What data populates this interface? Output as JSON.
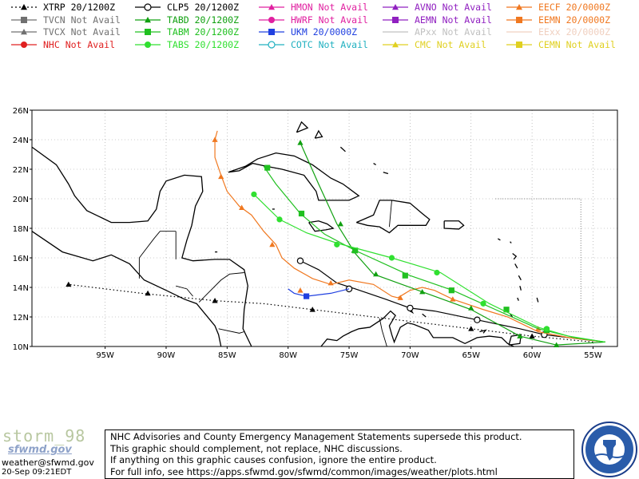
{
  "legend": [
    {
      "id": "xtrp",
      "label": "XTRP 20/1200Z",
      "color": "#000000",
      "marker": "triangle",
      "dash": "dotted"
    },
    {
      "id": "clp5",
      "label": "CLP5 20/1200Z",
      "color": "#000000",
      "marker": "circle-open",
      "dash": "solid"
    },
    {
      "id": "hmon",
      "label": "HMON Not Avail",
      "color": "#e020a0",
      "marker": "triangle",
      "dash": "solid"
    },
    {
      "id": "avno",
      "label": "AVNO Not Avail",
      "color": "#9020c0",
      "marker": "triangle",
      "dash": "solid"
    },
    {
      "id": "eecf",
      "label": "EECF 20/0000Z",
      "color": "#f07820",
      "marker": "triangle",
      "dash": "solid"
    },
    {
      "id": "tvcn",
      "label": "TVCN Not Avail",
      "color": "#707070",
      "marker": "square",
      "dash": "solid"
    },
    {
      "id": "tabd",
      "label": "TABD 20/1200Z",
      "color": "#10a010",
      "marker": "triangle",
      "dash": "solid"
    },
    {
      "id": "hwrf",
      "label": "HWRF Not Avail",
      "color": "#e020a0",
      "marker": "circle",
      "dash": "solid"
    },
    {
      "id": "aemn",
      "label": "AEMN Not Avail",
      "color": "#9020c0",
      "marker": "square",
      "dash": "solid"
    },
    {
      "id": "eemn",
      "label": "EEMN 20/0000Z",
      "color": "#f07820",
      "marker": "square",
      "dash": "solid"
    },
    {
      "id": "tvcx",
      "label": "TVCX Not Avail",
      "color": "#707070",
      "marker": "triangle",
      "dash": "solid"
    },
    {
      "id": "tabm",
      "label": "TABM 20/1200Z",
      "color": "#20c020",
      "marker": "square",
      "dash": "solid"
    },
    {
      "id": "ukm",
      "label": "UKM  20/0000Z",
      "color": "#2040e0",
      "marker": "square",
      "dash": "solid"
    },
    {
      "id": "apxx",
      "label": "APxx Not Avail",
      "color": "#c0c0c0",
      "marker": "none",
      "dash": "solid"
    },
    {
      "id": "eexx",
      "label": "EExx 20/0000Z",
      "color": "#f0d0c0",
      "marker": "none",
      "dash": "solid"
    },
    {
      "id": "nhc",
      "label": "NHC Not Avail",
      "color": "#e02020",
      "marker": "circle",
      "dash": "solid"
    },
    {
      "id": "tabs",
      "label": "TABS 20/1200Z",
      "color": "#30e030",
      "marker": "circle",
      "dash": "solid"
    },
    {
      "id": "cotc",
      "label": "COTC Not Avail",
      "color": "#20b0c0",
      "marker": "circle-open",
      "dash": "solid"
    },
    {
      "id": "cmc",
      "label": "CMC  Not Avail",
      "color": "#e0d020",
      "marker": "triangle",
      "dash": "solid"
    },
    {
      "id": "cemn",
      "label": "CEMN Not Avail",
      "color": "#e0d020",
      "marker": "square",
      "dash": "solid"
    }
  ],
  "chart_data": {
    "type": "line",
    "xlim": [
      -101,
      -53
    ],
    "ylim": [
      10,
      26
    ],
    "x_ticks": [
      "95W",
      "90W",
      "85W",
      "80W",
      "75W",
      "70W",
      "65W",
      "60W",
      "55W"
    ],
    "y_ticks": [
      "10N",
      "12N",
      "14N",
      "16N",
      "18N",
      "20N",
      "22N",
      "24N",
      "26N"
    ],
    "series": [
      {
        "name": "XTRP",
        "color": "#000000",
        "marker": "triangle",
        "dash": "dotted",
        "points": [
          [
            -55,
            10.3
          ],
          [
            -60,
            10.7
          ],
          [
            -65,
            11.2
          ],
          [
            -70,
            11.7
          ],
          [
            -75,
            12.2
          ],
          [
            -78,
            12.5
          ],
          [
            -82,
            12.9
          ],
          [
            -86,
            13.1
          ],
          [
            -92,
            13.6
          ],
          [
            -98,
            14.2
          ]
        ],
        "markers": [
          [
            -60,
            10.7
          ],
          [
            -65,
            11.2
          ],
          [
            -78,
            12.5
          ],
          [
            -86,
            13.1
          ],
          [
            -91.5,
            13.6
          ],
          [
            -98,
            14.2
          ]
        ]
      },
      {
        "name": "CLP5",
        "color": "#000000",
        "marker": "circle-open",
        "dash": "solid",
        "points": [
          [
            -54,
            10.3
          ],
          [
            -56,
            10.5
          ],
          [
            -59,
            10.8
          ],
          [
            -61,
            11.2
          ],
          [
            -64.5,
            11.8
          ],
          [
            -68,
            12.4
          ],
          [
            -70,
            12.6
          ],
          [
            -72,
            13.2
          ],
          [
            -74.5,
            13.9
          ],
          [
            -76,
            14.3
          ],
          [
            -77.5,
            15.2
          ],
          [
            -79,
            15.8
          ]
        ],
        "markers": [
          [
            -59,
            10.8
          ],
          [
            -64.5,
            11.8
          ],
          [
            -70,
            12.6
          ],
          [
            -75,
            13.9
          ],
          [
            -79,
            15.8
          ]
        ]
      },
      {
        "name": "UKM",
        "color": "#2040e0",
        "marker": "square",
        "dash": "solid",
        "points": [
          [
            -75,
            13.9
          ],
          [
            -76.5,
            13.6
          ],
          [
            -78.5,
            13.4
          ],
          [
            -79.5,
            13.6
          ],
          [
            -80,
            13.9
          ]
        ],
        "markers": [
          [
            -78.5,
            13.4
          ]
        ]
      },
      {
        "name": "EECF",
        "color": "#f07820",
        "marker": "triangle",
        "dash": "solid",
        "points": [
          [
            -54,
            10.3
          ],
          [
            -57,
            10.6
          ],
          [
            -59.5,
            11
          ],
          [
            -61,
            11.6
          ],
          [
            -62,
            12
          ],
          [
            -64,
            12.5
          ],
          [
            -66.5,
            13.2
          ],
          [
            -68,
            13.8
          ],
          [
            -69,
            14
          ],
          [
            -70,
            13.8
          ],
          [
            -71,
            13.3
          ],
          [
            -71.5,
            13.4
          ],
          [
            -73,
            14.2
          ],
          [
            -75,
            14.5
          ],
          [
            -76.5,
            14.2
          ],
          [
            -78,
            14.6
          ],
          [
            -79.5,
            15.3
          ],
          [
            -80.5,
            16
          ],
          [
            -81,
            16.9
          ],
          [
            -82,
            17.8
          ],
          [
            -83,
            18.9
          ],
          [
            -84,
            19.5
          ],
          [
            -85,
            20.5
          ],
          [
            -85.5,
            21.6
          ],
          [
            -86,
            22.8
          ],
          [
            -86,
            24
          ],
          [
            -85.8,
            24.6
          ]
        ],
        "markers": [
          [
            -59.5,
            11.2
          ],
          [
            -66.5,
            13.2
          ],
          [
            -70.8,
            13.3
          ],
          [
            -76.5,
            14.3
          ],
          [
            -79,
            13.8
          ],
          [
            -81.3,
            16.9
          ],
          [
            -83.8,
            19.4
          ],
          [
            -85.5,
            21.5
          ],
          [
            -86,
            24
          ]
        ]
      },
      {
        "name": "TABD",
        "color": "#10a010",
        "marker": "triangle",
        "dash": "solid",
        "points": [
          [
            -54,
            10.3
          ],
          [
            -58,
            10.1
          ],
          [
            -61,
            10.7
          ],
          [
            -65,
            12.5
          ],
          [
            -69,
            13.7
          ],
          [
            -73,
            14.9
          ],
          [
            -74.5,
            16.3
          ],
          [
            -76,
            18.3
          ],
          [
            -77.5,
            21
          ],
          [
            -79,
            23.8
          ]
        ],
        "markers": [
          [
            -58,
            10.1
          ],
          [
            -61,
            10.7
          ],
          [
            -65,
            12.6
          ],
          [
            -69,
            13.7
          ],
          [
            -72.8,
            14.9
          ],
          [
            -74.6,
            16.5
          ],
          [
            -75.7,
            18.3
          ],
          [
            -79,
            23.8
          ]
        ]
      },
      {
        "name": "TABM",
        "color": "#20c020",
        "marker": "square",
        "dash": "solid",
        "points": [
          [
            -54,
            10.3
          ],
          [
            -56.5,
            10.6
          ],
          [
            -59.5,
            11.2
          ],
          [
            -63,
            12.5
          ],
          [
            -66.5,
            13.8
          ],
          [
            -70,
            14.8
          ],
          [
            -74.5,
            16.5
          ],
          [
            -77,
            17.6
          ],
          [
            -79,
            19
          ],
          [
            -81,
            21
          ],
          [
            -82,
            22.2
          ]
        ],
        "markers": [
          [
            -58.8,
            11.1
          ],
          [
            -62.1,
            12.5
          ],
          [
            -66.6,
            13.8
          ],
          [
            -70.4,
            14.8
          ],
          [
            -74.5,
            16.5
          ],
          [
            -78.9,
            19
          ],
          [
            -81.7,
            22.1
          ]
        ]
      },
      {
        "name": "TABS",
        "color": "#30e030",
        "marker": "circle",
        "dash": "solid",
        "points": [
          [
            -54,
            10.3
          ],
          [
            -57,
            10.7
          ],
          [
            -59.5,
            11.3
          ],
          [
            -63.5,
            12.9
          ],
          [
            -67.5,
            15
          ],
          [
            -71.5,
            16
          ],
          [
            -76,
            17
          ],
          [
            -78.5,
            17.7
          ],
          [
            -80.7,
            18.6
          ],
          [
            -82.8,
            20.3
          ]
        ],
        "markers": [
          [
            -58.8,
            11.2
          ],
          [
            -64,
            12.9
          ],
          [
            -67.8,
            15
          ],
          [
            -71.5,
            16
          ],
          [
            -76,
            16.9
          ],
          [
            -80.7,
            18.6
          ],
          [
            -82.8,
            20.3
          ]
        ]
      }
    ]
  },
  "footer": {
    "title": "storm_98",
    "subtitle": "sfwmd.gov",
    "email": "weather@sfwmd.gov",
    "timestamp": "20-Sep 09:21EDT",
    "disclaimer": [
      "NHC Advisories and County Emergency Management Statements supersede this product.",
      "This graphic should complement, not replace, NHC discussions.",
      "If anything on this graphic causes confusion, ignore the entire product.",
      "For full info, see  https://apps.sfwmd.gov/sfwmd/common/images/weather/plots.html"
    ],
    "logo_text": "SOUTH FLORIDA WATER MANAGEMENT DISTRICT"
  }
}
